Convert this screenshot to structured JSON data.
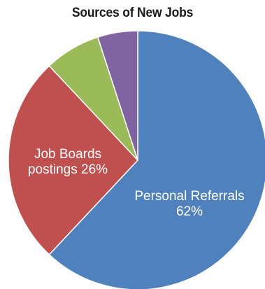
{
  "chart_data": {
    "type": "pie",
    "title": "Sources of New Jobs",
    "slices": [
      {
        "label_lines": [
          "Personal Referrals",
          "62%"
        ],
        "value": 62,
        "color": "#4f81bd"
      },
      {
        "label_lines": [
          "Job Boards",
          "postings 26%"
        ],
        "value": 26,
        "color": "#c0504d"
      },
      {
        "label_lines": [],
        "value": 7,
        "color": "#9bbb59"
      },
      {
        "label_lines": [],
        "value": 5,
        "color": "#8064a2"
      }
    ]
  }
}
